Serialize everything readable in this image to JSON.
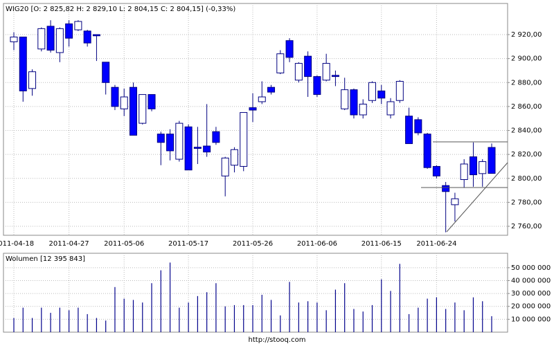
{
  "chart_data": [
    {
      "type": "candlestick",
      "title": "WIG20 [O: 2 825,82  H: 2 829,10  L: 2 804,15  C: 2 804,15] (-0,33%)",
      "categories": [
        "2011-04-18",
        null,
        null,
        null,
        null,
        null,
        "2011-04-27",
        null,
        null,
        null,
        null,
        null,
        "2011-05-06",
        null,
        null,
        null,
        null,
        null,
        null,
        "2011-05-17",
        null,
        null,
        null,
        null,
        null,
        null,
        "2011-05-26",
        null,
        null,
        null,
        null,
        null,
        null,
        "2011-06-06",
        null,
        null,
        null,
        null,
        null,
        null,
        "2011-06-15",
        null,
        null,
        null,
        null,
        null,
        "2011-06-24",
        null,
        null,
        null,
        null,
        null,
        null
      ],
      "open": [
        2914,
        2918,
        2875,
        2908,
        2927,
        2905,
        2929,
        2924,
        2923,
        2920,
        2897,
        2876,
        2858,
        2876,
        2846,
        2870,
        2837,
        2837,
        2816,
        2843,
        2826,
        2827,
        2839,
        2802,
        2811,
        2810,
        2859,
        2864,
        2876,
        2888,
        2915,
        2882,
        2902,
        2885,
        2882,
        2886,
        2858,
        2874,
        2853,
        2865,
        2873,
        2853,
        2865,
        2852,
        2849,
        2837,
        2810,
        2794,
        2778,
        2799,
        2818,
        2804,
        2825.82
      ],
      "high": [
        2922,
        2918,
        2891,
        2926,
        2932,
        2926,
        2932,
        2932,
        2924,
        2920,
        2897,
        2878,
        2875,
        2880,
        2870,
        2870,
        2839,
        2841,
        2848,
        2845,
        2843,
        2862,
        2843,
        2818,
        2826,
        2855,
        2871,
        2881,
        2878,
        2907,
        2917,
        2897,
        2906,
        2886,
        2904,
        2890,
        2884,
        2875,
        2866,
        2881,
        2878,
        2867,
        2882,
        2859,
        2851,
        2838,
        2811,
        2797,
        2788,
        2816,
        2830,
        2816,
        2829.1
      ],
      "low": [
        2907,
        2864,
        2869,
        2906,
        2905,
        2897,
        2910,
        2923,
        2910,
        2898,
        2870,
        2857,
        2852,
        2836,
        2845,
        2856,
        2811,
        2815,
        2814,
        2807,
        2812,
        2818,
        2828,
        2785,
        2805,
        2806,
        2847,
        2862,
        2870,
        2887,
        2897,
        2880,
        2868,
        2868,
        2881,
        2877,
        2857,
        2850,
        2850,
        2863,
        2862,
        2850,
        2863,
        2829,
        2836,
        2808,
        2800,
        2755,
        2764,
        2792,
        2793,
        2793,
        2804.15
      ],
      "close": [
        2918,
        2873,
        2889,
        2925,
        2907,
        2925,
        2917,
        2931,
        2913,
        2919,
        2880,
        2860,
        2868,
        2836,
        2870,
        2858,
        2830,
        2823,
        2846,
        2807,
        2825,
        2822,
        2830,
        2817,
        2824,
        2855,
        2857,
        2868,
        2872,
        2904,
        2901,
        2896,
        2885,
        2870,
        2896,
        2885,
        2874,
        2853,
        2862,
        2880,
        2867,
        2864,
        2881,
        2829,
        2838,
        2809,
        2802,
        2789,
        2783,
        2812,
        2803,
        2814,
        2804.15
      ],
      "ylim": [
        2752.5,
        2946
      ],
      "yticks": [
        {
          "value": 2760,
          "label": "2 760,00"
        },
        {
          "value": 2780,
          "label": "2 780,00"
        },
        {
          "value": 2800,
          "label": "2 800,00"
        },
        {
          "value": 2820,
          "label": "2 820,00"
        },
        {
          "value": 2840,
          "label": "2 840,00"
        },
        {
          "value": 2860,
          "label": "2 860,00"
        },
        {
          "value": 2880,
          "label": "2 880,00"
        },
        {
          "value": 2900,
          "label": "2 900,00"
        },
        {
          "value": 2920,
          "label": "2 920,00"
        }
      ],
      "up_color": "#ffffff",
      "down_color": "#0000ff",
      "grid": true
    },
    {
      "type": "bar",
      "title": "Wolumen [12 395 843]",
      "values": [
        11000000,
        19000000,
        11000000,
        19000000,
        15000000,
        19000000,
        17000000,
        19000000,
        14000000,
        11000000,
        9000000,
        35000000,
        26000000,
        25000000,
        23000000,
        38000000,
        48000000,
        54000000,
        19000000,
        23000000,
        28000000,
        31000000,
        38000000,
        20000000,
        21000000,
        21000000,
        21000000,
        29000000,
        25000000,
        13000000,
        39000000,
        23000000,
        24000000,
        23000000,
        17000000,
        33000000,
        38000000,
        18000000,
        16000000,
        21000000,
        41000000,
        32000000,
        53000000,
        14000000,
        19000000,
        26000000,
        27000000,
        18000000,
        23000000,
        17000000,
        27000000,
        24000000,
        12395843
      ],
      "ylim": [
        0,
        61200000
      ],
      "yticks": [
        {
          "value": 10000000,
          "label": "10 000 000"
        },
        {
          "value": 20000000,
          "label": "20 000 000"
        },
        {
          "value": 30000000,
          "label": "30 000 000"
        },
        {
          "value": 40000000,
          "label": "40 000 000"
        },
        {
          "value": 50000000,
          "label": "50 000 000"
        }
      ],
      "color": "#00008b",
      "grid": true
    }
  ],
  "footer": "http://stooq.com"
}
